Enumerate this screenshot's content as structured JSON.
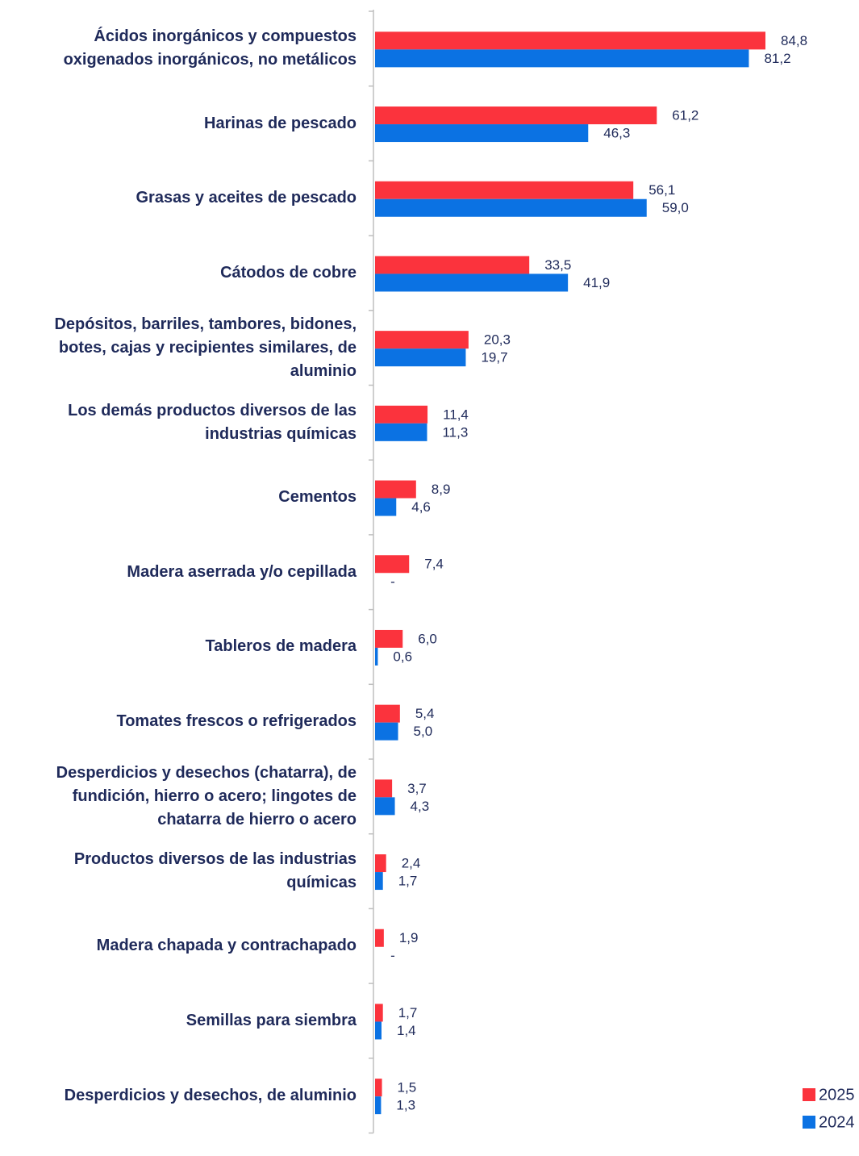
{
  "chart_data": {
    "type": "bar",
    "orientation": "horizontal",
    "categories": [
      "Ácidos inorgánicos y compuestos oxigenados inorgánicos, no metálicos",
      "Harinas de pescado",
      "Grasas y aceites de pescado",
      "Cátodos de cobre",
      "Depósitos, barriles, tambores, bidones, botes, cajas y recipientes similares, de aluminio",
      "Los demás productos diversos de las industrias químicas",
      "Cementos",
      "Madera aserrada y/o cepillada",
      "Tableros de madera",
      "Tomates frescos o refrigerados",
      "Desperdicios y desechos (chatarra), de fundición, hierro o acero; lingotes de chatarra de hierro o acero",
      "Productos diversos de las industrias químicas",
      "Madera chapada y contrachapado",
      "Semillas para siembra",
      "Desperdicios y desechos, de aluminio"
    ],
    "series": [
      {
        "name": "2025",
        "color": "#fb333d",
        "values": [
          84.8,
          61.2,
          56.1,
          33.5,
          20.3,
          11.4,
          8.9,
          7.4,
          6.0,
          5.4,
          3.7,
          2.4,
          1.9,
          1.7,
          1.5
        ],
        "value_labels": [
          "84,8",
          "61,2",
          "56,1",
          "33,5",
          "20,3",
          "11,4",
          "8,9",
          "7,4",
          "6,0",
          "5,4",
          "3,7",
          "2,4",
          "1,9",
          "1,7",
          "1,5"
        ]
      },
      {
        "name": "2024",
        "color": "#0b72e3",
        "values": [
          81.2,
          46.3,
          59.0,
          41.9,
          19.7,
          11.3,
          4.6,
          null,
          0.6,
          5.0,
          4.3,
          1.7,
          null,
          1.4,
          1.3
        ],
        "value_labels": [
          "81,2",
          "46,3",
          "59,0",
          "41,9",
          "19,7",
          "11,3",
          "4,6",
          "-",
          "0,6",
          "5,0",
          "4,3",
          "1,7",
          "-",
          "1,4",
          "1,3"
        ]
      }
    ],
    "legend": "bottom-right"
  }
}
